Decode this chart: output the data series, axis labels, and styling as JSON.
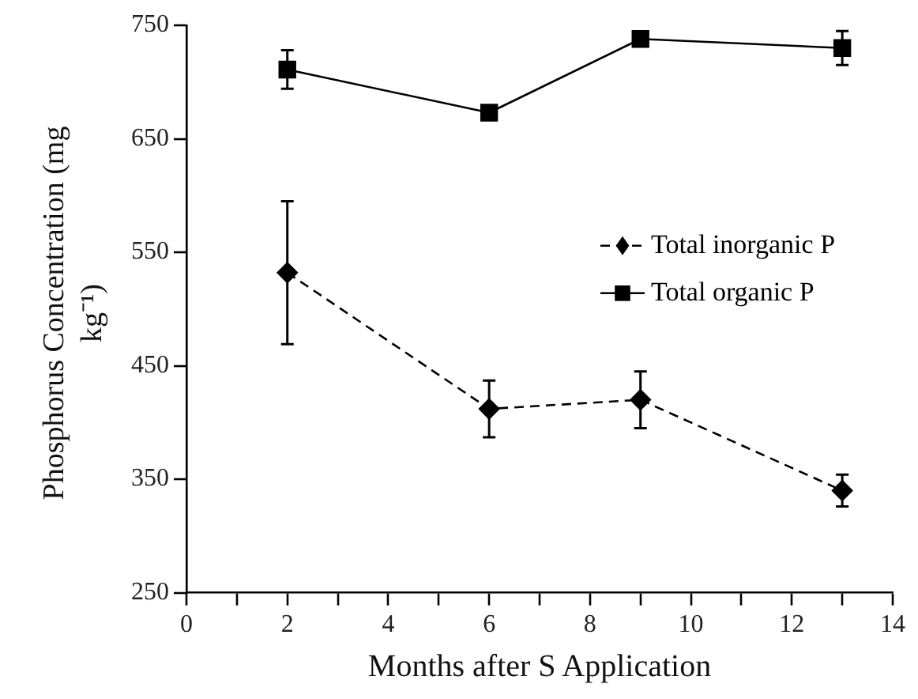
{
  "chart_data": {
    "type": "line",
    "xlabel": "Months after S Application",
    "ylabel": "Phosphorus Concentration (mg kg⁻¹)",
    "xlim": [
      0,
      14
    ],
    "xticks": [
      0,
      {
        "value": 1,
        "label": null
      },
      2,
      {
        "value": 3,
        "label": null
      },
      4,
      {
        "value": 5,
        "label": null
      },
      6,
      {
        "value": 7,
        "label": null
      },
      8,
      {
        "value": 9,
        "label": null
      },
      10,
      {
        "value": 11,
        "label": null
      },
      12,
      {
        "value": 13,
        "label": null
      },
      14
    ],
    "ylim": [
      250,
      750
    ],
    "yticks": [
      250,
      350,
      450,
      550,
      650,
      750
    ],
    "x": [
      2,
      6,
      9,
      13
    ],
    "series": [
      {
        "name": "Total inorganic P",
        "color": "#000000",
        "values": [
          532,
          412,
          420,
          340
        ],
        "errors": [
          63,
          25,
          25,
          14
        ],
        "marker": "diamond",
        "line_style": "dashed"
      },
      {
        "name": "Total organic P",
        "color": "#000000",
        "values": [
          711,
          673,
          738,
          730
        ],
        "errors": [
          17,
          null,
          null,
          15
        ],
        "marker": "square",
        "line_style": "solid"
      }
    ],
    "legend": "right",
    "grid": false
  }
}
